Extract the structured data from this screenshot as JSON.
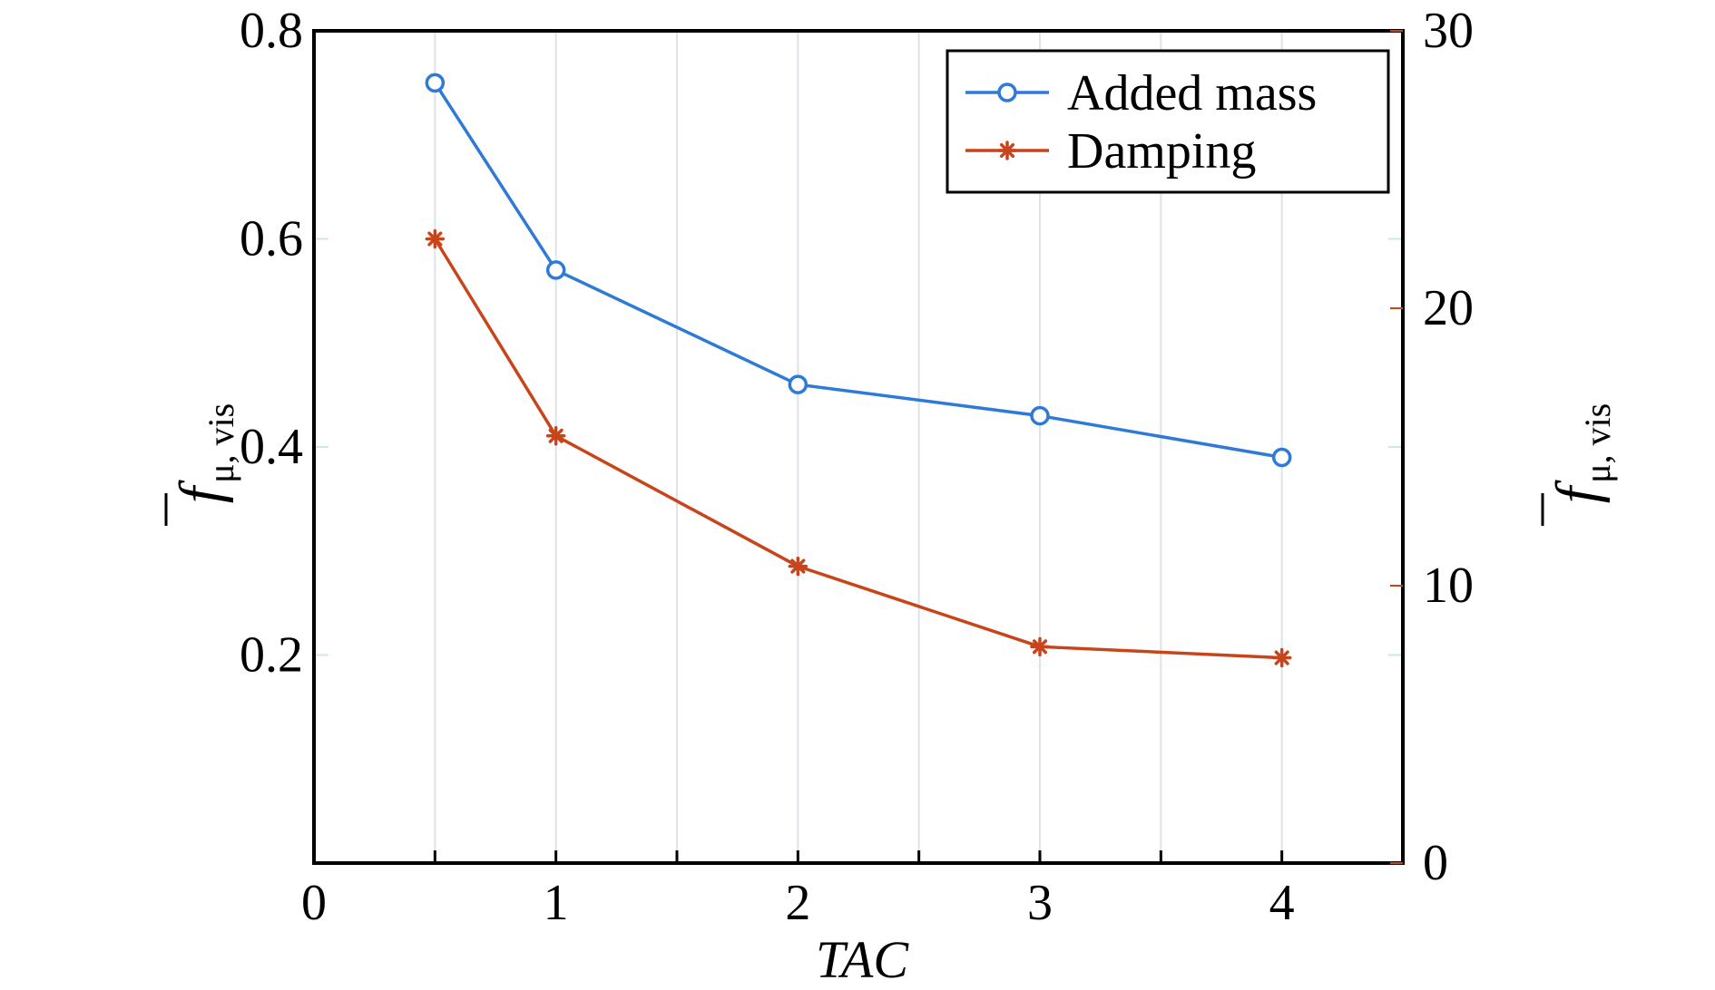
{
  "chart_data": {
    "type": "line",
    "x": [
      0.5,
      1,
      2,
      3,
      4
    ],
    "xlabel": "TAC",
    "xlim": [
      0,
      4.5
    ],
    "x_ticks": [
      0,
      1,
      2,
      3,
      4
    ],
    "x_tick_labels": [
      "0",
      "1",
      "2",
      "3",
      "4"
    ],
    "ylabel_left": {
      "symbol": "f",
      "subscript": "μ, vis"
    },
    "ylabel_right": {
      "symbol": "f",
      "subscript": "μ, vis"
    },
    "ylim_left": [
      0,
      0.8
    ],
    "y_ticks_left": [
      0.2,
      0.4,
      0.6,
      0.8
    ],
    "y_tick_labels_left": [
      "0.2",
      "0.4",
      "0.6",
      "0.8"
    ],
    "ylim_right": [
      0,
      30
    ],
    "y_ticks_right": [
      0,
      10,
      20,
      30
    ],
    "y_tick_labels_right": [
      "0",
      "10",
      "20",
      "30"
    ],
    "grid": "vertical",
    "legend_position": "top-right",
    "series": [
      {
        "name": "Added mass",
        "axis": "left",
        "marker": "circle",
        "color": "#2f7ad6",
        "values": [
          0.75,
          0.57,
          0.46,
          0.43,
          0.39
        ]
      },
      {
        "name": "Damping",
        "axis": "right",
        "marker": "asterisk",
        "color": "#c8441a",
        "values": [
          22.5,
          15.4,
          10.7,
          7.8,
          7.4
        ]
      }
    ]
  }
}
